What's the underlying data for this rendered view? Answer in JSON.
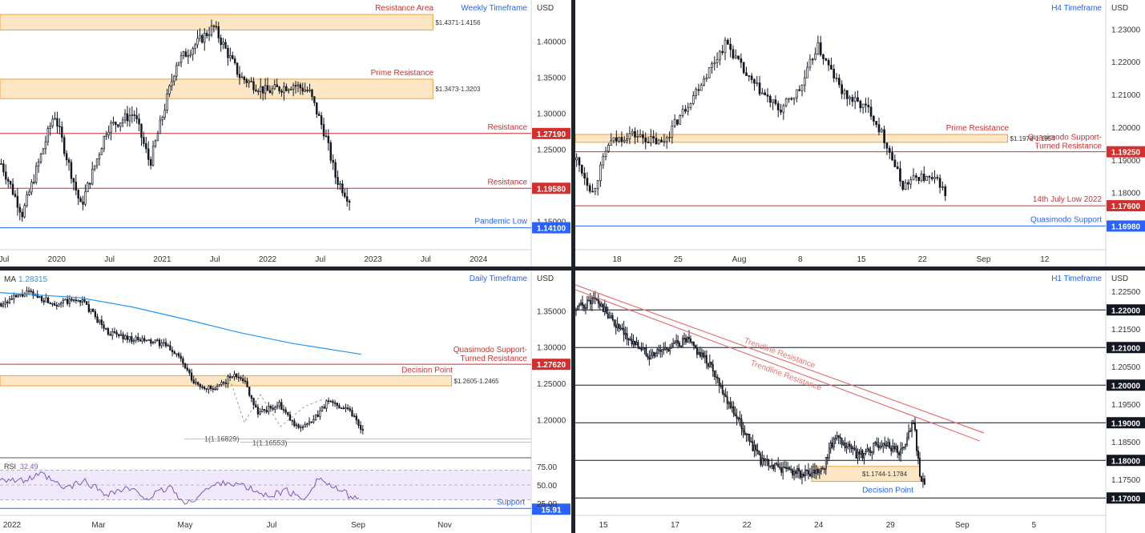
{
  "colors": {
    "red": "#d32f2f",
    "blue": "#2962ff",
    "zone_fill": "#fde6c4",
    "zone_stroke": "#f0a040",
    "candle": "#131722",
    "ma": "#2196f3",
    "rsi": "#7e57c2",
    "rsi_band": "#efe9fb"
  },
  "chart_data": [
    {
      "id": "weekly",
      "type": "candlestick",
      "title": "Weekly Timeframe",
      "currency": "USD",
      "ylim": [
        1.135,
        1.435
      ],
      "yticks": [
        "1.40000",
        "1.35000",
        "1.30000",
        "1.25000",
        "1.20000",
        "1.15000"
      ],
      "ytick_values": [
        1.4,
        1.35,
        1.3,
        1.25,
        1.2,
        1.15
      ],
      "xticks": [
        "Jul",
        "2020",
        "Jul",
        "2021",
        "Jul",
        "2022",
        "Jul",
        "2023",
        "Jul",
        "2024"
      ],
      "price_path": [
        [
          0,
          1.23
        ],
        [
          0.04,
          1.16
        ],
        [
          0.1,
          1.3
        ],
        [
          0.15,
          1.17
        ],
        [
          0.2,
          1.28
        ],
        [
          0.25,
          1.3
        ],
        [
          0.28,
          1.23
        ],
        [
          0.33,
          1.37
        ],
        [
          0.4,
          1.42
        ],
        [
          0.45,
          1.35
        ],
        [
          0.5,
          1.33
        ],
        [
          0.55,
          1.34
        ],
        [
          0.58,
          1.33
        ],
        [
          0.61,
          1.27
        ],
        [
          0.63,
          1.21
        ],
        [
          0.66,
          1.175
        ]
      ],
      "zones": [
        {
          "label": "Resistance Area",
          "range": "$1.4371-1.4156",
          "top": 1.4371,
          "bottom": 1.4156
        },
        {
          "label": "Prime Resistance",
          "range": "$1.3473-1.3203",
          "top": 1.3473,
          "bottom": 1.3203
        }
      ],
      "levels": [
        {
          "label": "Resistance",
          "price": "1.27190",
          "value": 1.2719,
          "color": "red"
        },
        {
          "label": "Resistance",
          "price": "1.19580",
          "value": 1.1958,
          "color": "red"
        },
        {
          "label": "Pandemic Low",
          "price": "1.14100",
          "value": 1.141,
          "color": "blue"
        }
      ]
    },
    {
      "id": "h4",
      "type": "candlestick",
      "title": "H4 Timeframe",
      "currency": "USD",
      "ylim": [
        1.1655,
        1.234
      ],
      "yticks": [
        "1.23000",
        "1.22000",
        "1.21000",
        "1.20000",
        "1.19000",
        "1.18000"
      ],
      "ytick_values": [
        1.23,
        1.22,
        1.21,
        1.2,
        1.19,
        1.18
      ],
      "xticks": [
        "18",
        "25",
        "Aug",
        "8",
        "15",
        "22",
        "Sep",
        "12"
      ],
      "price_path": [
        [
          0,
          1.19
        ],
        [
          0.03,
          1.18
        ],
        [
          0.06,
          1.195
        ],
        [
          0.1,
          1.198
        ],
        [
          0.16,
          1.195
        ],
        [
          0.2,
          1.205
        ],
        [
          0.28,
          1.226
        ],
        [
          0.32,
          1.215
        ],
        [
          0.38,
          1.205
        ],
        [
          0.42,
          1.212
        ],
        [
          0.45,
          1.225
        ],
        [
          0.5,
          1.21
        ],
        [
          0.55,
          1.205
        ],
        [
          0.58,
          1.195
        ],
        [
          0.61,
          1.182
        ],
        [
          0.64,
          1.185
        ],
        [
          0.66,
          1.184
        ],
        [
          0.68,
          1.183
        ],
        [
          0.695,
          1.177
        ]
      ],
      "zones": [
        {
          "label": "Prime Resistance",
          "range": "$1.1978-1.1954",
          "top": 1.1978,
          "bottom": 1.1954
        }
      ],
      "levels": [
        {
          "label": "Quasimodo Support-Turned Resistance",
          "price": "1.19250",
          "value": 1.1925,
          "color": "red"
        },
        {
          "label": "14th July Low 2022",
          "price": "1.17600",
          "value": 1.176,
          "color": "red"
        },
        {
          "label": "Quasimodo Support",
          "price": "1.16980",
          "value": 1.1698,
          "color": "blue"
        }
      ]
    },
    {
      "id": "daily",
      "type": "candlestick",
      "title": "Daily Timeframe",
      "currency": "USD",
      "ma_label": "MA",
      "ma_value": "1.28315",
      "ylim": [
        1.165,
        1.39
      ],
      "yticks": [
        "1.35000",
        "1.30000",
        "1.25000",
        "1.20000"
      ],
      "ytick_values": [
        1.35,
        1.3,
        1.25,
        1.2
      ],
      "xticks": [
        "2022",
        "Mar",
        "May",
        "Jul",
        "Sep",
        "Nov"
      ],
      "price_path": [
        [
          0,
          1.36
        ],
        [
          0.05,
          1.375
        ],
        [
          0.1,
          1.36
        ],
        [
          0.15,
          1.365
        ],
        [
          0.2,
          1.32
        ],
        [
          0.25,
          1.31
        ],
        [
          0.3,
          1.305
        ],
        [
          0.33,
          1.29
        ],
        [
          0.36,
          1.25
        ],
        [
          0.4,
          1.24
        ],
        [
          0.43,
          1.26
        ],
        [
          0.45,
          1.26
        ],
        [
          0.48,
          1.21
        ],
        [
          0.52,
          1.22
        ],
        [
          0.55,
          1.19
        ],
        [
          0.58,
          1.195
        ],
        [
          0.61,
          1.225
        ],
        [
          0.65,
          1.215
        ],
        [
          0.68,
          1.18
        ]
      ],
      "ma_path": [
        [
          0,
          1.375
        ],
        [
          0.15,
          1.368
        ],
        [
          0.25,
          1.355
        ],
        [
          0.35,
          1.338
        ],
        [
          0.45,
          1.32
        ],
        [
          0.55,
          1.305
        ],
        [
          0.68,
          1.29
        ]
      ],
      "zones": [
        {
          "label": "Decision Point",
          "range": "$1.2605-1.2465",
          "top": 1.2605,
          "bottom": 1.2465
        }
      ],
      "levels": [
        {
          "label": "Quasimodo Support-Turned Resistance",
          "price": "1.27620",
          "value": 1.2762,
          "color": "red"
        }
      ],
      "annotations": [
        "1(1.16829)",
        "1(1.16553)"
      ],
      "rsi": {
        "label": "RSI",
        "value": "32.49",
        "ylim": [
          15,
          85
        ],
        "yticks": [
          "75.00",
          "50.00",
          "25.00"
        ],
        "ytick_values": [
          75,
          50,
          25
        ],
        "support_label": "Support",
        "support_value": "15.91",
        "path": [
          [
            0,
            60
          ],
          [
            0.04,
            55
          ],
          [
            0.08,
            64
          ],
          [
            0.12,
            45
          ],
          [
            0.16,
            55
          ],
          [
            0.2,
            38
          ],
          [
            0.24,
            45
          ],
          [
            0.28,
            32
          ],
          [
            0.32,
            48
          ],
          [
            0.35,
            22
          ],
          [
            0.38,
            40
          ],
          [
            0.42,
            55
          ],
          [
            0.46,
            48
          ],
          [
            0.5,
            35
          ],
          [
            0.54,
            42
          ],
          [
            0.57,
            30
          ],
          [
            0.6,
            60
          ],
          [
            0.63,
            45
          ],
          [
            0.66,
            35
          ],
          [
            0.68,
            32
          ]
        ]
      }
    },
    {
      "id": "h1",
      "type": "candlestick",
      "title": "H1 Timeframe",
      "currency": "USD",
      "ylim": [
        1.1675,
        1.2275
      ],
      "yticks": [
        "1.22500",
        "1.21500",
        "1.20500",
        "1.19500",
        "1.18500",
        "1.17500"
      ],
      "ytick_values": [
        1.225,
        1.215,
        1.205,
        1.195,
        1.185,
        1.175
      ],
      "xticks": [
        "15",
        "17",
        "22",
        "24",
        "29",
        "Sep",
        "5"
      ],
      "price_path": [
        [
          0,
          1.22
        ],
        [
          0.03,
          1.223
        ],
        [
          0.08,
          1.213
        ],
        [
          0.12,
          1.208
        ],
        [
          0.18,
          1.212
        ],
        [
          0.22,
          1.205
        ],
        [
          0.25,
          1.195
        ],
        [
          0.3,
          1.18
        ],
        [
          0.33,
          1.178
        ],
        [
          0.38,
          1.176
        ],
        [
          0.4,
          1.177
        ],
        [
          0.42,
          1.186
        ],
        [
          0.46,
          1.181
        ],
        [
          0.5,
          1.185
        ],
        [
          0.53,
          1.182
        ],
        [
          0.55,
          1.19
        ],
        [
          0.56,
          1.176
        ],
        [
          0.57,
          1.174
        ]
      ],
      "zones": [
        {
          "label": "Decision Point",
          "range": "$1.1744-1.1784",
          "top": 1.1784,
          "bottom": 1.1744
        }
      ],
      "levels": [
        {
          "price": "1.22000",
          "value": 1.22
        },
        {
          "price": "1.21000",
          "value": 1.21
        },
        {
          "price": "1.20000",
          "value": 1.2
        },
        {
          "price": "1.19000",
          "value": 1.19
        },
        {
          "price": "1.18000",
          "value": 1.18
        },
        {
          "price": "1.17000",
          "value": 1.17
        }
      ],
      "trendlines": [
        "Trendline Resistance",
        "Trendline Resistance"
      ]
    }
  ]
}
